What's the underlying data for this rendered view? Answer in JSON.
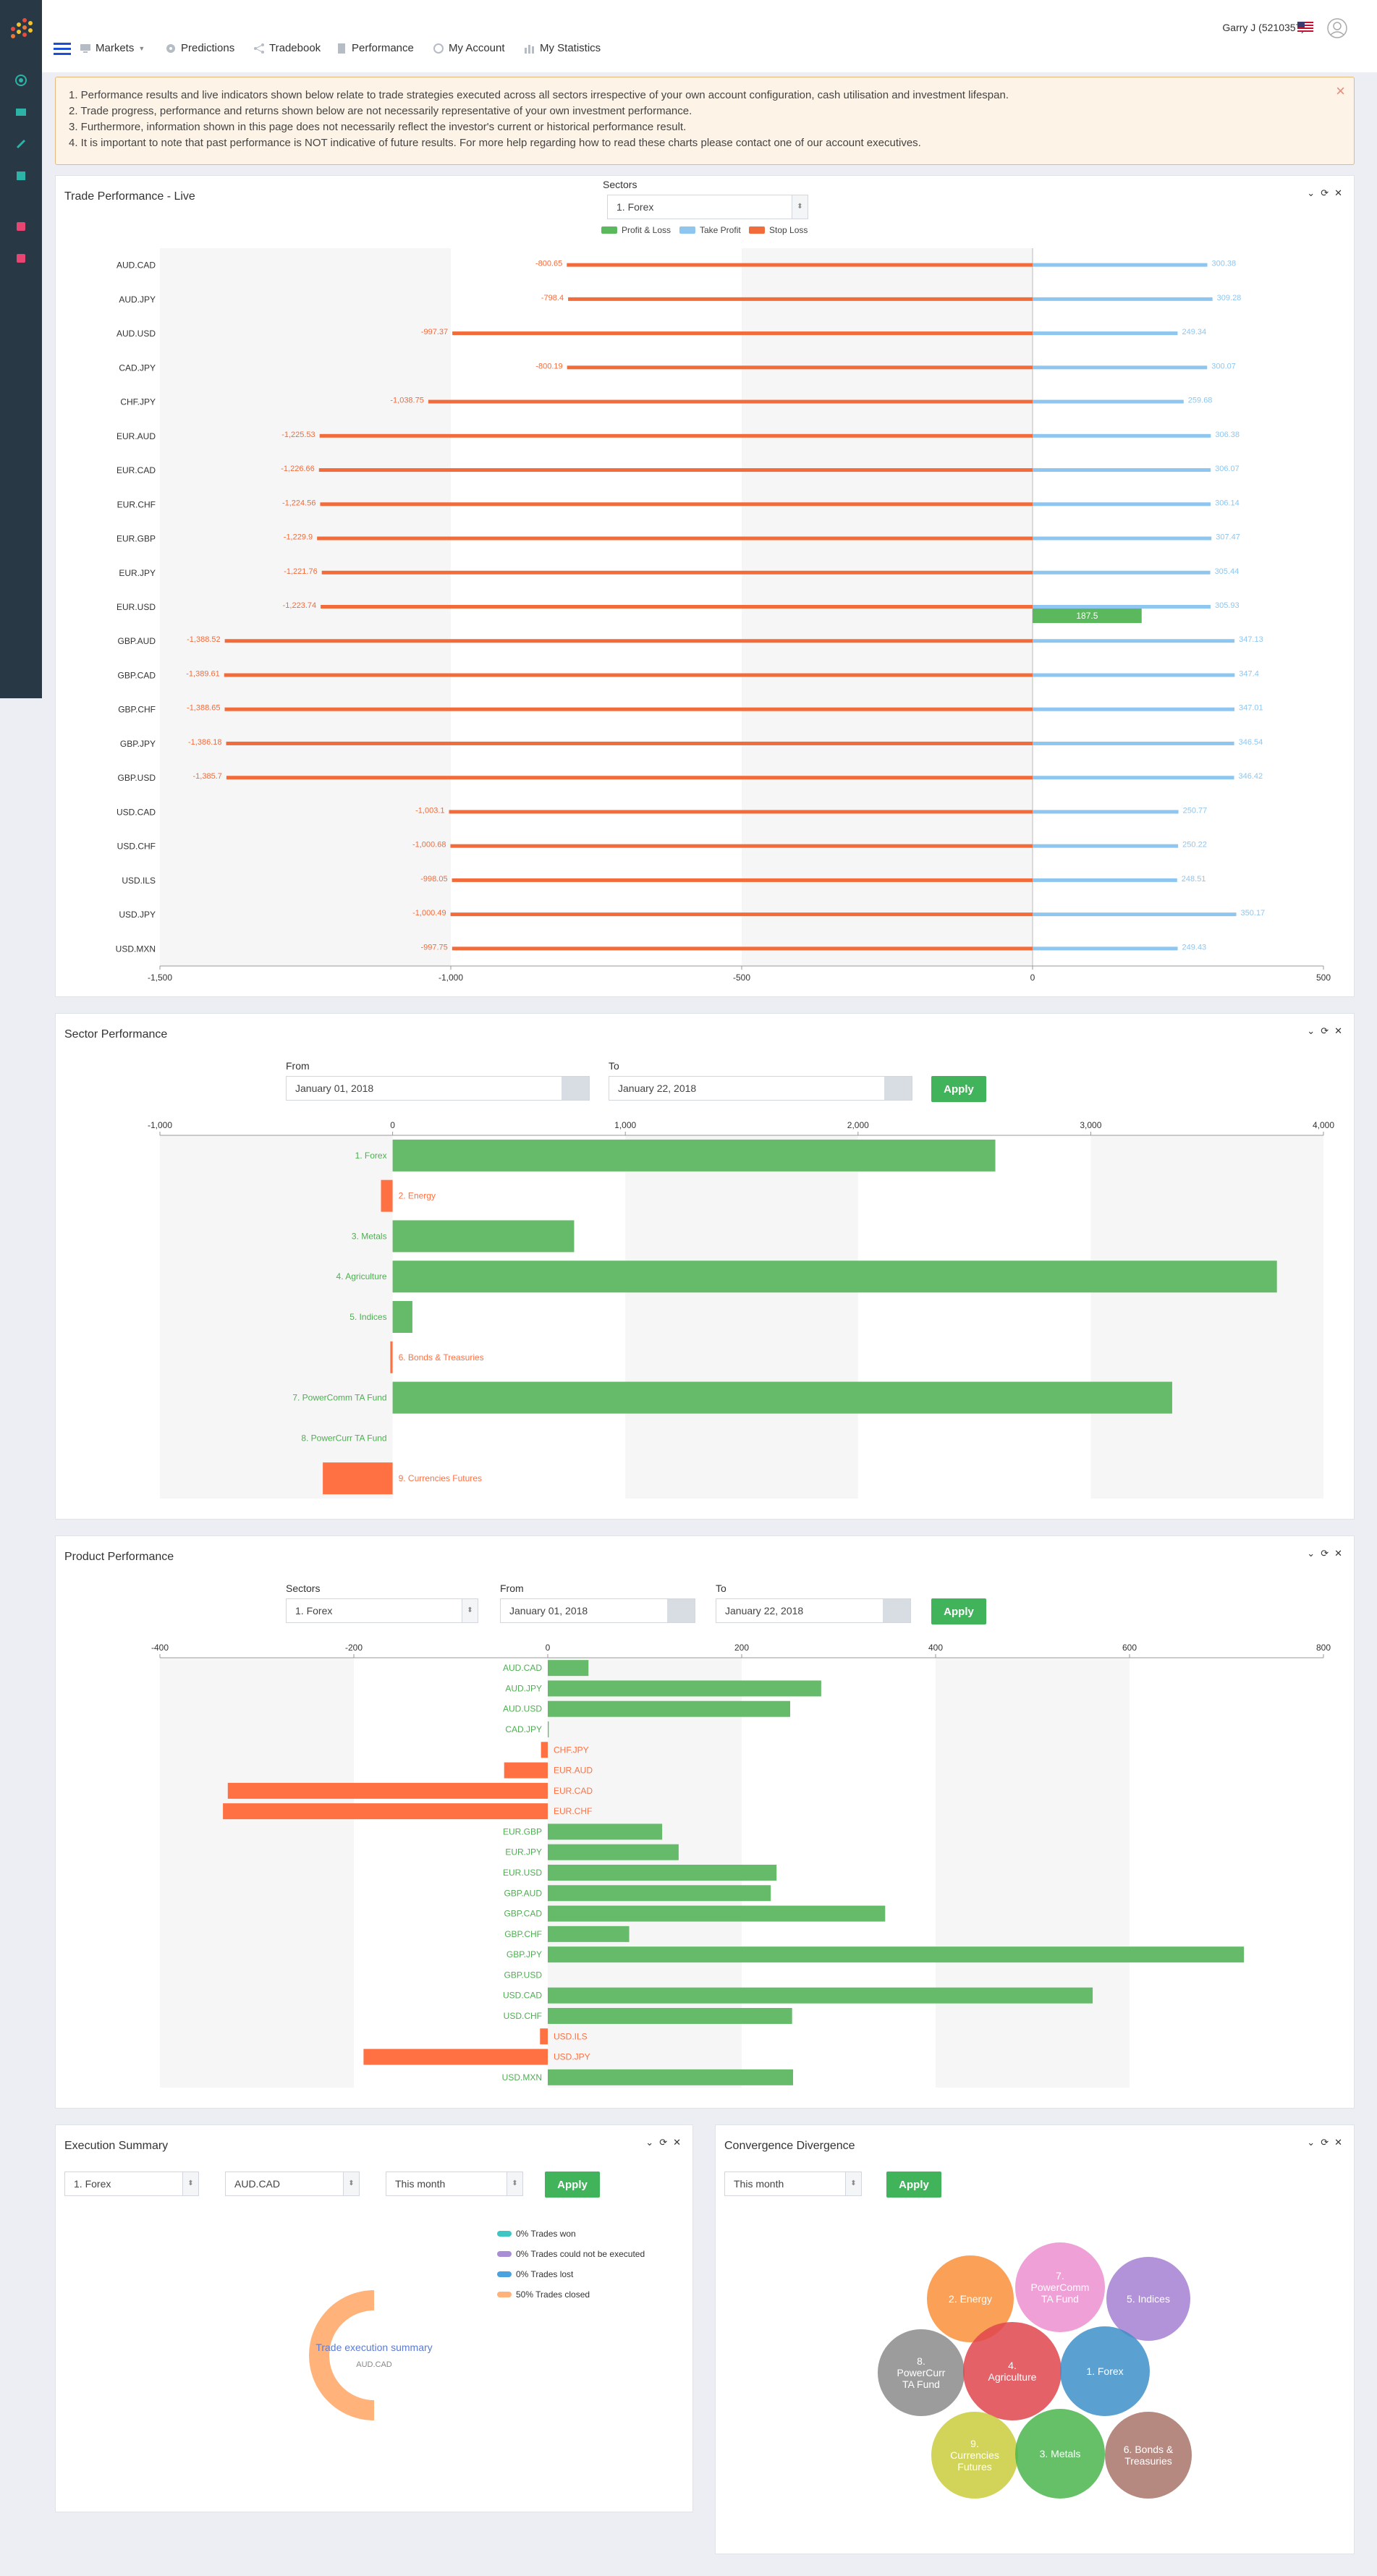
{
  "nav": {
    "items": [
      {
        "label": "Markets",
        "icon": "monitor-icon"
      },
      {
        "label": "Predictions",
        "icon": "gear-icon"
      },
      {
        "label": "Tradebook",
        "icon": "share-icon"
      },
      {
        "label": "Performance",
        "icon": "document-icon"
      },
      {
        "label": "My Account",
        "icon": "target-icon"
      },
      {
        "label": "My Statistics",
        "icon": "bar-chart-icon"
      }
    ],
    "user": "Garry J (5210357)"
  },
  "notice": {
    "lines": [
      "1. Performance results and live indicators shown below relate to trade strategies executed across all sectors irrespective of your own account configuration, cash utilisation and investment lifespan.",
      "2. Trade progress, performance and returns shown below are not necessarily representative of your own investment performance.",
      "3. Furthermore, information shown in this page does not necessarily reflect the investor's current or historical performance result.",
      "4. It is important to note that past performance is NOT indicative of future results. For more help regarding how to read these charts please contact one of our account executives."
    ],
    "close": "×"
  },
  "trade_live": {
    "title": "Trade Performance - Live",
    "sectors_label": "Sectors",
    "sector_value": "1. Forex",
    "legend": [
      {
        "label": "Profit & Loss",
        "color": "#5cb85c"
      },
      {
        "label": "Take Profit",
        "color": "#8ec6ef"
      },
      {
        "label": "Stop Loss",
        "color": "#f26b3a"
      }
    ]
  },
  "sector_perf": {
    "title": "Sector Performance",
    "from_label": "From",
    "from_value": "January 01, 2018",
    "to_label": "To",
    "to_value": "January 22, 2018",
    "apply": "Apply"
  },
  "product_perf": {
    "title": "Product Performance",
    "sectors_label": "Sectors",
    "sector_value": "1. Forex",
    "from_label": "From",
    "from_value": "January 01, 2018",
    "to_label": "To",
    "to_value": "January 22, 2018",
    "apply": "Apply"
  },
  "exec_summary": {
    "title": "Execution Summary",
    "sector_value": "1. Forex",
    "product_value": "AUD.CAD",
    "period_value": "This month",
    "apply": "Apply",
    "legend": [
      {
        "label": "0% Trades won",
        "color": "#3ec6c4"
      },
      {
        "label": "0% Trades could not be executed",
        "color": "#a98ed6"
      },
      {
        "label": "0% Trades lost",
        "color": "#4aa3df"
      },
      {
        "label": "50% Trades closed",
        "color": "#ffb27a"
      }
    ],
    "center_title": "Trade execution summary",
    "center_sub": "AUD.CAD"
  },
  "conv_div": {
    "title": "Convergence Divergence",
    "period_value": "This month",
    "apply": "Apply"
  },
  "chart_data": [
    {
      "type": "bar",
      "orientation": "horizontal",
      "chart": "trade-performance-live",
      "categories": [
        "AUD.CAD",
        "AUD.JPY",
        "AUD.USD",
        "CAD.JPY",
        "CHF.JPY",
        "EUR.AUD",
        "EUR.CAD",
        "EUR.CHF",
        "EUR.GBP",
        "EUR.JPY",
        "EUR.USD",
        "GBP.AUD",
        "GBP.CAD",
        "GBP.CHF",
        "GBP.JPY",
        "GBP.USD",
        "USD.CAD",
        "USD.CHF",
        "USD.ILS",
        "USD.JPY",
        "USD.MXN"
      ],
      "series": [
        {
          "name": "Stop Loss",
          "color": "#f26b3a",
          "values": [
            -800.65,
            -798.4,
            -997.37,
            -800.19,
            -1038.75,
            -1225.53,
            -1226.66,
            -1224.56,
            -1229.9,
            -1221.76,
            -1223.74,
            -1388.52,
            -1389.61,
            -1388.65,
            -1386.18,
            -1385.7,
            -1003.1,
            -1000.68,
            -998.05,
            -1000.49,
            -997.75
          ]
        },
        {
          "name": "Take Profit",
          "color": "#8ec6ef",
          "values": [
            300.38,
            309.28,
            249.34,
            300.07,
            259.68,
            306.38,
            306.07,
            306.14,
            307.47,
            305.44,
            305.93,
            347.13,
            347.4,
            347.01,
            346.54,
            346.42,
            250.77,
            250.22,
            248.51,
            350.17,
            249.43
          ]
        },
        {
          "name": "Profit & Loss",
          "color": "#5cb85c",
          "values": [
            null,
            null,
            null,
            null,
            null,
            null,
            null,
            null,
            null,
            null,
            187.5,
            null,
            null,
            null,
            null,
            null,
            null,
            null,
            null,
            null,
            null
          ]
        }
      ],
      "xticks": [
        -1500,
        -1000,
        -500,
        0,
        500
      ],
      "xlim": [
        -1500,
        500
      ]
    },
    {
      "type": "bar",
      "orientation": "horizontal",
      "chart": "sector-performance",
      "categories": [
        "1. Forex",
        "2. Energy",
        "3. Metals",
        "4. Agriculture",
        "5. Indices",
        "6. Bonds & Treasuries",
        "7. PowerComm TA Fund",
        "8. PowerCurr TA Fund",
        "9. Currencies Futures"
      ],
      "values": [
        2590,
        -50,
        780,
        3800,
        85,
        -10,
        3350,
        0,
        -300
      ],
      "xticks": [
        -1000,
        0,
        1000,
        2000,
        3000,
        4000
      ],
      "xlim": [
        -1000,
        4000
      ]
    },
    {
      "type": "bar",
      "orientation": "horizontal",
      "chart": "product-performance",
      "categories": [
        "AUD.CAD",
        "AUD.JPY",
        "AUD.USD",
        "CAD.JPY",
        "CHF.JPY",
        "EUR.AUD",
        "EUR.CAD",
        "EUR.CHF",
        "EUR.GBP",
        "EUR.JPY",
        "EUR.USD",
        "GBP.AUD",
        "GBP.CAD",
        "GBP.CHF",
        "GBP.JPY",
        "GBP.USD",
        "USD.CAD",
        "USD.CHF",
        "USD.ILS",
        "USD.JPY",
        "USD.MXN"
      ],
      "values": [
        42,
        282,
        250,
        1,
        -7,
        -45,
        -330,
        -335,
        118,
        135,
        236,
        230,
        348,
        84,
        718,
        0,
        562,
        252,
        -8,
        -190,
        253
      ],
      "xticks": [
        -400,
        -200,
        0,
        200,
        400,
        600,
        800
      ],
      "xlim": [
        -400,
        800
      ]
    },
    {
      "type": "pie",
      "chart": "execution-summary",
      "values": [
        0,
        0,
        0,
        50
      ],
      "labels": [
        "Trades won",
        "Trades could not be executed",
        "Trades lost",
        "Trades closed"
      ]
    },
    {
      "type": "bubble",
      "chart": "convergence-divergence",
      "bubbles": [
        {
          "label": "2. Energy",
          "color": "#f9913a"
        },
        {
          "label": "7. PowerComm TA Fund",
          "color": "#ec8fcf"
        },
        {
          "label": "5. Indices",
          "color": "#a57fd1"
        },
        {
          "label": "8. PowerCurr TA Fund",
          "color": "#8b8b8b"
        },
        {
          "label": "4. Agriculture",
          "color": "#e0454d"
        },
        {
          "label": "1. Forex",
          "color": "#3d8fc9"
        },
        {
          "label": "9. Currencies Futures",
          "color": "#c9cc3b"
        },
        {
          "label": "3. Metals",
          "color": "#4bb54e"
        },
        {
          "label": "6. Bonds & Treasuries",
          "color": "#a8736a"
        }
      ]
    }
  ]
}
